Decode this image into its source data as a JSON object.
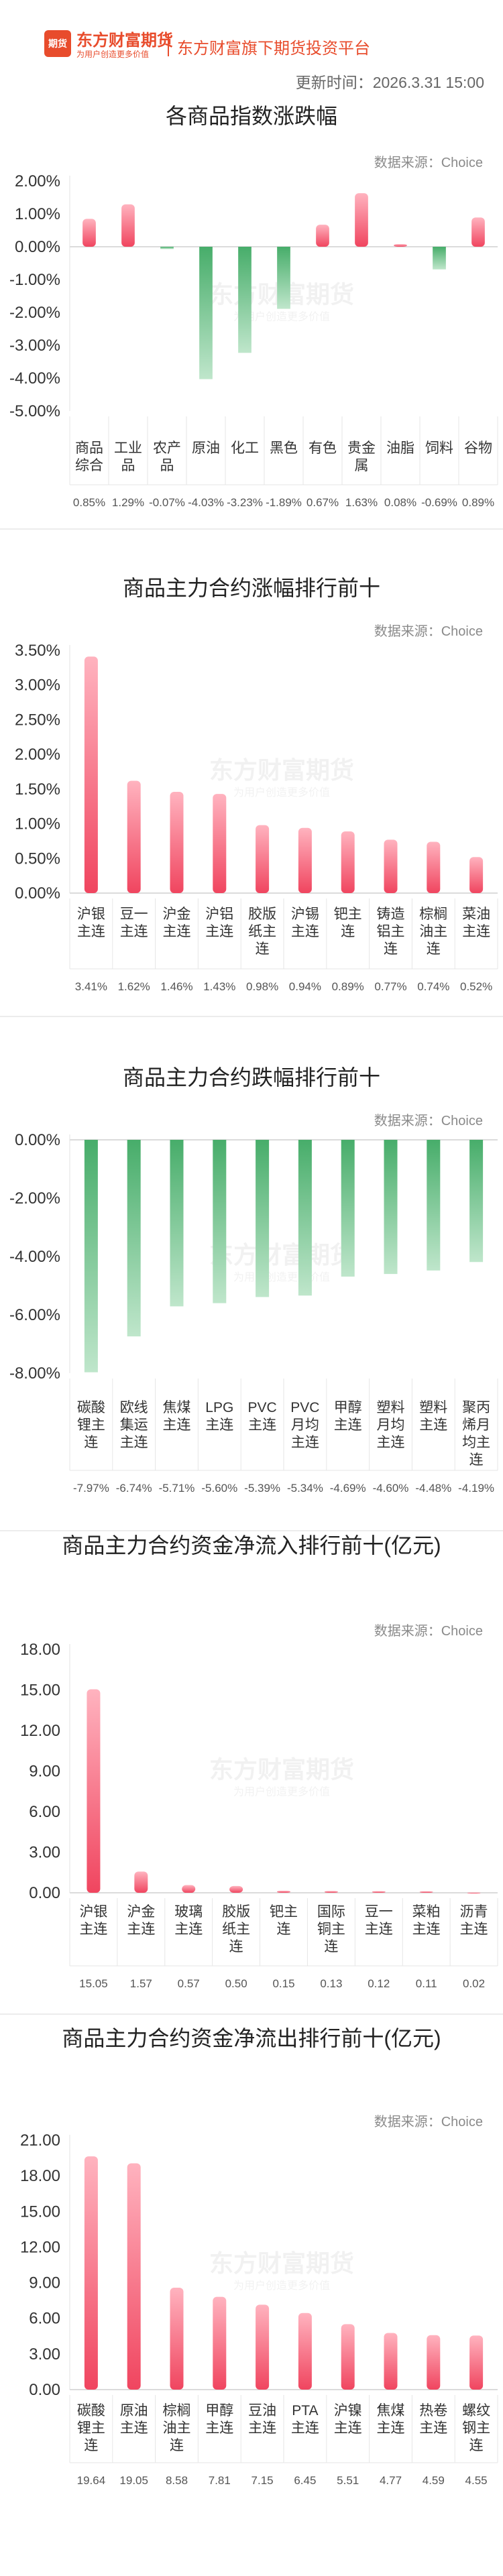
{
  "header": {
    "logo_text": "期货",
    "brand": "东方财富期货",
    "brand_sub": "为用户创造更多价值",
    "platform": "东方财富旗下期货投资平台",
    "update_time": "更新时间：2026.3.31 15:00"
  },
  "watermark": {
    "main": "东方财富期货",
    "sub": "为用户创造更多价值"
  },
  "colors": {
    "up": "#f0455f",
    "down": "#47ad6a"
  },
  "sections": [
    {
      "title": "各商品指数涨跌幅",
      "source": "数据来源：Choice"
    },
    {
      "title": "商品主力合约涨幅排行前十",
      "source": "数据来源：Choice"
    },
    {
      "title": "商品主力合约跌幅排行前十",
      "source": "数据来源：Choice"
    },
    {
      "title": "商品主力合约资金净流入排行前十(亿元)",
      "source": "数据来源：Choice"
    },
    {
      "title": "商品主力合约资金净流出排行前十(亿元)",
      "source": "数据来源：Choice"
    }
  ],
  "chart_data": [
    {
      "type": "bar",
      "title": "各商品指数涨跌幅",
      "categories": [
        "商品综合",
        "工业品",
        "农产品",
        "原油",
        "化工",
        "黑色",
        "有色",
        "贵金属",
        "油脂",
        "饲料",
        "谷物"
      ],
      "values": [
        0.85,
        1.29,
        -0.07,
        -4.03,
        -3.23,
        -1.89,
        0.67,
        1.63,
        0.08,
        -0.69,
        0.89
      ],
      "value_labels": [
        "0.85%",
        "1.29%",
        "-0.07%",
        "-4.03%",
        "-3.23%",
        "-1.89%",
        "0.67%",
        "1.63%",
        "0.08%",
        "-0.69%",
        "0.89%"
      ],
      "yticks": [
        "2.00%",
        "1.00%",
        "0.00%",
        "-1.00%",
        "-2.00%",
        "-3.00%",
        "-4.00%",
        "-5.00%"
      ],
      "ylim": [
        -5,
        2
      ]
    },
    {
      "type": "bar",
      "title": "商品主力合约涨幅排行前十",
      "categories": [
        "沪银主连",
        "豆一主连",
        "沪金主连",
        "沪铝主连",
        "胶版纸主连",
        "沪锡主连",
        "钯主连",
        "铸造铝主连",
        "棕榈油主连",
        "菜油主连"
      ],
      "values": [
        3.41,
        1.62,
        1.46,
        1.43,
        0.98,
        0.94,
        0.89,
        0.77,
        0.74,
        0.52
      ],
      "value_labels": [
        "3.41%",
        "1.62%",
        "1.46%",
        "1.43%",
        "0.98%",
        "0.94%",
        "0.89%",
        "0.77%",
        "0.74%",
        "0.52%"
      ],
      "yticks": [
        "3.50%",
        "3.00%",
        "2.50%",
        "2.00%",
        "1.50%",
        "1.00%",
        "0.50%",
        "0.00%"
      ],
      "ylim": [
        0,
        3.5
      ]
    },
    {
      "type": "bar",
      "title": "商品主力合约跌幅排行前十",
      "categories": [
        "碳酸锂主连",
        "欧线集运主连",
        "焦煤主连",
        "LPG主连",
        "PVC主连",
        "PVC月均主连",
        "甲醇主连",
        "塑料月均主连",
        "塑料主连",
        "聚丙烯月均主连"
      ],
      "values": [
        -7.97,
        -6.74,
        -5.71,
        -5.6,
        -5.39,
        -5.34,
        -4.69,
        -4.6,
        -4.48,
        -4.19
      ],
      "value_labels": [
        "-7.97%",
        "-6.74%",
        "-5.71%",
        "-5.60%",
        "-5.39%",
        "-5.34%",
        "-4.69%",
        "-4.60%",
        "-4.48%",
        "-4.19%"
      ],
      "yticks": [
        "0.00%",
        "-2.00%",
        "-4.00%",
        "-6.00%",
        "-8.00%"
      ],
      "ylim": [
        -8,
        0
      ]
    },
    {
      "type": "bar",
      "title": "商品主力合约资金净流入排行前十(亿元)",
      "categories": [
        "沪银主连",
        "沪金主连",
        "玻璃主连",
        "胶版纸主连",
        "钯主连",
        "国际铜主连",
        "豆一主连",
        "菜粕主连",
        "沥青主连"
      ],
      "values": [
        15.05,
        1.57,
        0.57,
        0.5,
        0.15,
        0.13,
        0.12,
        0.11,
        0.02
      ],
      "value_labels": [
        "15.05",
        "1.57",
        "0.57",
        "0.50",
        "0.15",
        "0.13",
        "0.12",
        "0.11",
        "0.02"
      ],
      "yticks": [
        "18.00",
        "15.00",
        "12.00",
        "9.00",
        "6.00",
        "3.00",
        "0.00"
      ],
      "ylim": [
        0,
        18
      ]
    },
    {
      "type": "bar",
      "title": "商品主力合约资金净流出排行前十(亿元)",
      "categories": [
        "碳酸锂主连",
        "原油主连",
        "棕榈油主连",
        "甲醇主连",
        "豆油主连",
        "PTA主连",
        "沪镍主连",
        "焦煤主连",
        "热卷主连",
        "螺纹钢主连"
      ],
      "values": [
        19.64,
        19.05,
        8.58,
        7.81,
        7.15,
        6.45,
        5.51,
        4.77,
        4.59,
        4.55
      ],
      "value_labels": [
        "19.64",
        "19.05",
        "8.58",
        "7.81",
        "7.15",
        "6.45",
        "5.51",
        "4.77",
        "4.59",
        "4.55"
      ],
      "yticks": [
        "21.00",
        "18.00",
        "15.00",
        "12.00",
        "9.00",
        "6.00",
        "3.00",
        "0.00"
      ],
      "ylim": [
        0,
        21
      ]
    }
  ]
}
